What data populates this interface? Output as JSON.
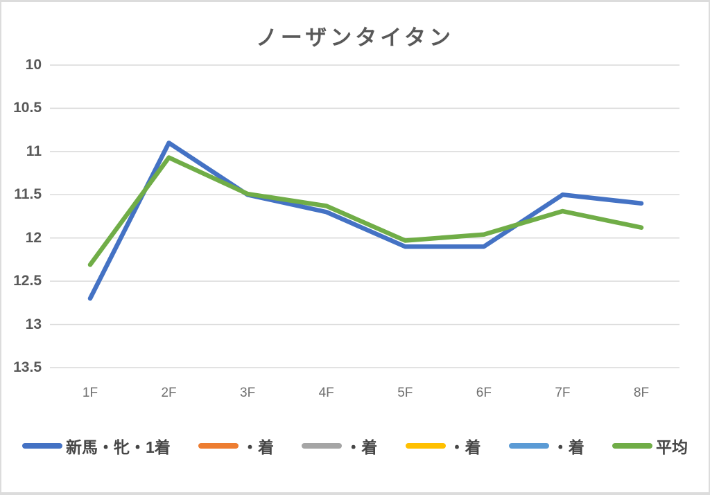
{
  "frame": {
    "background": "#ffffff",
    "border_color": "#dcdcdc",
    "gridline_color": "#d9d9d9",
    "title_color": "#595959",
    "tick_color": "#595959"
  },
  "chart_data": {
    "type": "line",
    "title": "ノーザンタイタン",
    "categories": [
      "1F",
      "2F",
      "3F",
      "4F",
      "5F",
      "6F",
      "7F",
      "8F"
    ],
    "y_ticks": [
      10,
      10.5,
      11,
      11.5,
      12,
      12.5,
      13,
      13.5
    ],
    "y_tick_labels": [
      "10",
      "10.5",
      "11",
      "11.5",
      "12",
      "12.5",
      "13",
      "13.5"
    ],
    "ylim": [
      10,
      13.5
    ],
    "y_axis_inverted": true,
    "grid": true,
    "legend_position": "bottom",
    "series": [
      {
        "name": "新馬・牝・1着",
        "color": "#4472C4",
        "values": [
          12.7,
          10.9,
          11.5,
          11.7,
          12.1,
          12.1,
          11.5,
          11.6
        ]
      },
      {
        "name": "・着",
        "color": "#ED7D31",
        "values": []
      },
      {
        "name": "・着",
        "color": "#A5A5A5",
        "values": []
      },
      {
        "name": "・着",
        "color": "#FFC000",
        "values": []
      },
      {
        "name": "・着",
        "color": "#5B9BD5",
        "values": []
      },
      {
        "name": "平均",
        "color": "#70AD47",
        "values": [
          12.31,
          11.07,
          11.49,
          11.63,
          12.03,
          11.96,
          11.69,
          11.88
        ]
      }
    ]
  }
}
